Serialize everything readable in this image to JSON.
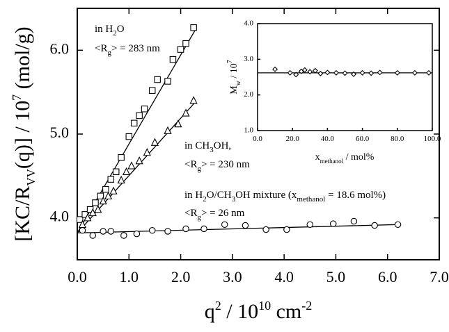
{
  "chart_data": [
    {
      "type": "scatter",
      "panel": "main",
      "xlabel": "q² / 10¹⁰ cm⁻²",
      "ylabel": "[KC/R_VV(q)] / 10⁷ (mol/g)",
      "xlim": [
        0.0,
        7.0
      ],
      "ylim": [
        3.5,
        6.5
      ],
      "xticks": [
        "0.0",
        "1.0",
        "2.0",
        "3.0",
        "4.0",
        "5.0",
        "6.0",
        "7.0"
      ],
      "yticks": [
        "4.0",
        "5.0",
        "6.0"
      ],
      "grid": false,
      "series": [
        {
          "name": "in H2O",
          "marker": "square",
          "x": [
            0.05,
            0.15,
            0.25,
            0.35,
            0.45,
            0.55,
            0.65,
            0.75,
            0.85,
            1.0,
            1.1,
            1.2,
            1.3,
            1.45,
            1.55,
            1.75,
            1.85,
            2.0,
            2.1,
            2.25
          ],
          "y": [
            3.98,
            4.04,
            4.1,
            4.18,
            4.26,
            4.34,
            4.46,
            4.55,
            4.72,
            4.97,
            5.13,
            5.22,
            5.3,
            5.52,
            5.65,
            5.63,
            5.89,
            6.01,
            6.08,
            6.27
          ],
          "fit": {
            "x": [
              0.0,
              2.28
            ],
            "y": [
              3.82,
              6.24
            ]
          }
        },
        {
          "name": "in CH3OH",
          "marker": "triangle",
          "x": [
            0.1,
            0.2,
            0.3,
            0.4,
            0.5,
            0.6,
            0.7,
            0.85,
            0.95,
            1.05,
            1.2,
            1.35,
            1.5,
            1.75,
            1.95,
            2.1,
            2.25
          ],
          "y": [
            3.92,
            4.0,
            4.06,
            4.1,
            4.2,
            4.26,
            4.32,
            4.45,
            4.55,
            4.62,
            4.68,
            4.78,
            4.9,
            5.04,
            5.12,
            5.25,
            5.4
          ],
          "fit": {
            "x": [
              0.0,
              2.28
            ],
            "y": [
              3.82,
              5.38
            ]
          }
        },
        {
          "name": "in H2O/CH3OH mixture",
          "marker": "circle",
          "x": [
            0.1,
            0.3,
            0.5,
            0.65,
            0.9,
            1.15,
            1.45,
            1.75,
            2.1,
            2.45,
            2.85,
            3.25,
            3.65,
            4.05,
            4.5,
            4.95,
            5.35,
            5.75,
            6.2
          ],
          "y": [
            3.85,
            3.79,
            3.84,
            3.84,
            3.79,
            3.81,
            3.85,
            3.84,
            3.87,
            3.87,
            3.92,
            3.91,
            3.86,
            3.86,
            3.92,
            3.93,
            3.96,
            3.91,
            3.92
          ],
          "fit": {
            "x": [
              0.0,
              6.2
            ],
            "y": [
              3.82,
              3.92
            ]
          }
        }
      ]
    },
    {
      "type": "scatter",
      "panel": "inset",
      "xlabel": "x_methanol / mol%",
      "ylabel": "M_w / 10⁷",
      "xlim": [
        0.0,
        100.0
      ],
      "ylim": [
        1.0,
        4.0
      ],
      "xticks": [
        "0.0",
        "20.0",
        "40.0",
        "60.0",
        "80.0",
        "100.0"
      ],
      "yticks": [
        "1.0",
        "2.0",
        "3.0",
        "4.0"
      ],
      "grid": false,
      "series": [
        {
          "marker": "diamond",
          "x": [
            10.0,
            18.6,
            22.0,
            25.0,
            27.0,
            30.0,
            33.0,
            36.0,
            40.0,
            45.0,
            50.0,
            55.0,
            60.0,
            65.0,
            70.0,
            80.0,
            90.0,
            98.0
          ],
          "y": [
            2.72,
            2.62,
            2.57,
            2.66,
            2.7,
            2.65,
            2.68,
            2.6,
            2.63,
            2.62,
            2.61,
            2.58,
            2.62,
            2.61,
            2.63,
            2.62,
            2.62,
            2.62
          ],
          "fit": {
            "x": [
              0.0,
              100.0
            ],
            "y": [
              2.62,
              2.62
            ]
          }
        }
      ]
    }
  ],
  "annotations": {
    "h2o_label": "in H2O",
    "h2o_rg": "<Rg> = 283 nm",
    "ch3oh_label": "in CH3OH,",
    "ch3oh_rg": "<Rg> = 230 nm",
    "mixture_label": "in H2O/CH3OH mixture (xmethanol = 18.6 mol%)",
    "mixture_rg": "<Rg> = 26 nm"
  },
  "colors": {
    "ink": "#000000",
    "background": "#ffffff"
  }
}
